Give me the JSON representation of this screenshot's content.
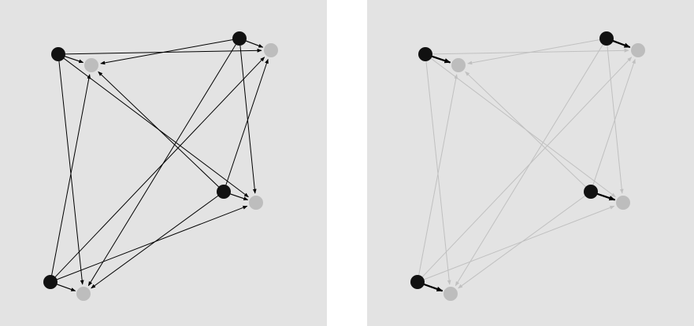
{
  "colors": {
    "panel_background": "#e3e3e3",
    "page_background": "#ffffff",
    "source_node": "#111111",
    "target_node": "#bdbdbd",
    "edge_active": "#000000",
    "edge_muted": "#c0c0c0"
  },
  "panels": [
    {
      "id": "left",
      "edge_style": "active",
      "node_arrow_style": "short"
    },
    {
      "id": "right",
      "edge_style": "muted",
      "node_arrow_style": "bold"
    }
  ],
  "graph": {
    "nodes": [
      {
        "id": "A",
        "kind": "source"
      },
      {
        "id": "A2",
        "kind": "target"
      },
      {
        "id": "B",
        "kind": "source"
      },
      {
        "id": "B2",
        "kind": "target"
      },
      {
        "id": "C",
        "kind": "source"
      },
      {
        "id": "C2",
        "kind": "target"
      },
      {
        "id": "D",
        "kind": "source"
      },
      {
        "id": "D2",
        "kind": "target"
      }
    ],
    "node_links": [
      {
        "from": "A",
        "to": "A2"
      },
      {
        "from": "B",
        "to": "B2"
      },
      {
        "from": "C",
        "to": "C2"
      },
      {
        "from": "D",
        "to": "D2"
      }
    ],
    "edges": [
      {
        "from": "A",
        "to": "B2"
      },
      {
        "from": "A",
        "to": "C2"
      },
      {
        "from": "A",
        "to": "D2"
      },
      {
        "from": "B",
        "to": "A2"
      },
      {
        "from": "B",
        "to": "C2"
      },
      {
        "from": "B",
        "to": "D2"
      },
      {
        "from": "C",
        "to": "A2"
      },
      {
        "from": "C",
        "to": "B2"
      },
      {
        "from": "C",
        "to": "D2"
      },
      {
        "from": "D",
        "to": "A2"
      },
      {
        "from": "D",
        "to": "B2"
      },
      {
        "from": "D",
        "to": "C2"
      }
    ]
  }
}
